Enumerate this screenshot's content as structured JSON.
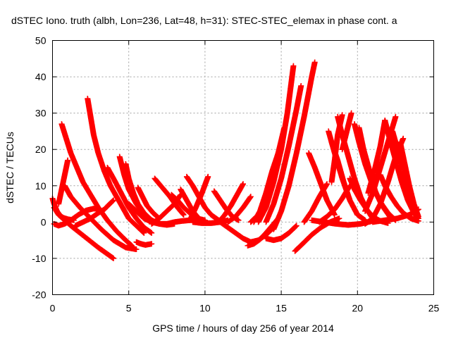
{
  "chart_data": {
    "type": "scatter",
    "title": "dSTEC Iono. truth (albh, Lon=236, Lat=48, h=31): STEC-STEC_elemax in phase cont. a",
    "xlabel": "GPS time / hours of day 256 of year 2014",
    "ylabel": "dSTEC  / TECUs",
    "xlim": [
      0,
      25
    ],
    "ylim": [
      -20,
      50
    ],
    "xticks": [
      "0",
      "5",
      "10",
      "15",
      "20",
      "25"
    ],
    "yticks": [
      "-20",
      "-10",
      "0",
      "10",
      "20",
      "30",
      "40",
      "50"
    ],
    "grid": true,
    "marker": "plus",
    "color": "#ff0000",
    "series": [
      {
        "x": [
          0.0,
          0.1,
          0.3,
          0.5,
          0.7,
          1.0,
          1.4
        ],
        "y": [
          6.5,
          5.0,
          3.0,
          1.8,
          1.2,
          0.8,
          0.5
        ]
      },
      {
        "x": [
          0.1,
          0.4,
          0.8,
          1.2,
          1.8,
          2.4,
          3.0,
          3.5,
          4.0
        ],
        "y": [
          4.0,
          2.0,
          0.5,
          -1.0,
          -3.0,
          -5.0,
          -7.0,
          -8.5,
          -10.0
        ]
      },
      {
        "x": [
          0.1,
          0.4,
          0.8,
          1.2,
          1.7,
          2.2,
          2.7,
          3.1
        ],
        "y": [
          -0.5,
          -1.0,
          -0.5,
          0.5,
          2.0,
          3.2,
          3.7,
          3.6
        ]
      },
      {
        "x": [
          0.4,
          0.6,
          0.8,
          1.0
        ],
        "y": [
          5.0,
          9.0,
          13.0,
          17.0
        ]
      },
      {
        "x": [
          0.6,
          0.9,
          1.2,
          1.6,
          2.0,
          2.5,
          3.0,
          3.6,
          4.2,
          4.8,
          5.2
        ],
        "y": [
          27.0,
          23.0,
          19.0,
          15.0,
          11.0,
          7.5,
          4.0,
          0.5,
          -2.5,
          -5.0,
          -6.5
        ]
      },
      {
        "x": [
          0.8,
          1.2,
          1.8,
          2.5,
          3.2,
          4.0,
          4.8,
          5.5
        ],
        "y": [
          10.0,
          7.0,
          4.0,
          1.0,
          -2.0,
          -5.0,
          -7.0,
          -7.5
        ]
      },
      {
        "x": [
          2.3,
          2.5,
          2.7,
          3.0,
          3.4,
          3.8,
          4.2,
          4.6,
          5.0,
          5.5,
          6.0
        ],
        "y": [
          34.0,
          29.0,
          24.0,
          19.0,
          14.0,
          10.0,
          7.0,
          4.0,
          1.0,
          -1.0,
          -3.0
        ]
      },
      {
        "x": [
          1.5,
          2.0,
          2.5,
          3.0,
          3.4,
          3.7,
          4.0
        ],
        "y": [
          -1.0,
          0.0,
          1.0,
          2.5,
          3.5,
          4.8,
          6.0
        ]
      },
      {
        "x": [
          3.6,
          4.0,
          4.5,
          5.0,
          5.5,
          6.0,
          6.5
        ],
        "y": [
          15.0,
          12.0,
          8.0,
          4.0,
          1.0,
          -1.5,
          -3.0
        ]
      },
      {
        "x": [
          4.4,
          4.7,
          5.0,
          5.5,
          6.0,
          6.5,
          7.0,
          7.5,
          8.0
        ],
        "y": [
          18.0,
          13.0,
          9.0,
          5.0,
          2.0,
          0.5,
          -0.5,
          -0.8,
          -0.5
        ]
      },
      {
        "x": [
          4.8,
          5.0,
          5.3,
          5.6,
          6.0,
          6.5,
          7.0
        ],
        "y": [
          16.0,
          12.0,
          8.0,
          5.0,
          2.5,
          0.5,
          -0.5
        ]
      },
      {
        "x": [
          5.6,
          5.9,
          6.2,
          6.6,
          7.0
        ],
        "y": [
          9.5,
          7.0,
          4.5,
          2.5,
          1.0
        ]
      },
      {
        "x": [
          5.5,
          5.8,
          6.1,
          6.5
        ],
        "y": [
          -5.5,
          -6.0,
          -6.3,
          -6.0
        ]
      },
      {
        "x": [
          5.0,
          5.5,
          6.0,
          6.5,
          7.0,
          7.5,
          8.0,
          8.5,
          9.0,
          9.5,
          10.0
        ],
        "y": [
          5.0,
          3.0,
          1.0,
          0.0,
          -0.5,
          -0.5,
          0.0,
          0.3,
          0.5,
          0.5,
          0.3
        ]
      },
      {
        "x": [
          6.5,
          7.0,
          7.5,
          8.0,
          8.4
        ],
        "y": [
          -0.5,
          1.0,
          3.0,
          5.0,
          7.5
        ]
      },
      {
        "x": [
          6.7,
          7.2,
          7.7,
          8.2,
          8.6
        ],
        "y": [
          12.0,
          9.5,
          7.0,
          4.0,
          2.0
        ]
      },
      {
        "x": [
          7.8,
          8.2,
          8.6,
          9.0,
          9.5,
          10.0
        ],
        "y": [
          7.5,
          6.0,
          4.0,
          2.5,
          1.0,
          0.5
        ]
      },
      {
        "x": [
          8.4,
          8.8,
          9.2,
          9.6
        ],
        "y": [
          9.0,
          6.0,
          3.0,
          1.0
        ]
      },
      {
        "x": [
          8.8,
          9.2,
          9.6,
          10.0,
          10.4,
          10.9
        ],
        "y": [
          12.5,
          10.0,
          7.0,
          4.0,
          2.0,
          0.5
        ]
      },
      {
        "x": [
          9.0,
          9.4,
          9.8,
          10.2
        ],
        "y": [
          0.5,
          4.0,
          8.0,
          12.5
        ]
      },
      {
        "x": [
          9.2,
          9.8,
          10.4,
          11.0,
          11.5
        ],
        "y": [
          0.0,
          -0.3,
          -0.3,
          0.0,
          0.5
        ]
      },
      {
        "x": [
          10.6,
          11.0,
          11.4,
          11.8,
          12.2
        ],
        "y": [
          8.5,
          6.0,
          3.5,
          1.5,
          0.5
        ]
      },
      {
        "x": [
          10.9,
          11.3,
          11.7,
          12.1,
          12.5
        ],
        "y": [
          0.0,
          2.0,
          4.5,
          7.5,
          10.5
        ]
      },
      {
        "x": [
          11.5,
          12.0,
          12.5,
          13.0
        ],
        "y": [
          0.0,
          1.5,
          4.0,
          7.0
        ]
      },
      {
        "x": [
          11.0,
          11.5,
          12.0,
          12.5,
          13.0,
          13.5,
          14.0,
          14.5
        ],
        "y": [
          0.0,
          -1.5,
          -3.0,
          -4.5,
          -5.5,
          -5.0,
          -3.5,
          -1.5
        ]
      },
      {
        "x": [
          12.8,
          13.2,
          13.6,
          14.0,
          14.4,
          14.8
        ],
        "y": [
          -6.5,
          -6.0,
          -4.8,
          -3.0,
          -1.0,
          1.0
        ]
      },
      {
        "x": [
          13.0,
          13.5,
          14.0,
          14.4,
          14.8,
          15.2
        ],
        "y": [
          0.0,
          2.0,
          6.0,
          12.0,
          19.0,
          26.0
        ]
      },
      {
        "x": [
          13.2,
          13.6,
          14.0,
          14.4,
          14.8
        ],
        "y": [
          0.0,
          3.0,
          8.0,
          14.0,
          19.0
        ]
      },
      {
        "x": [
          13.5,
          14.0,
          14.5,
          15.0,
          15.4,
          15.8
        ],
        "y": [
          0.0,
          4.0,
          11.0,
          20.0,
          30.0,
          43.0
        ]
      },
      {
        "x": [
          14.0,
          14.5,
          15.0,
          15.5,
          16.0,
          16.3
        ],
        "y": [
          0.0,
          5.0,
          12.0,
          21.0,
          31.0,
          37.5
        ]
      },
      {
        "x": [
          14.5,
          15.0,
          15.5,
          16.0,
          16.5,
          17.0,
          17.2
        ],
        "y": [
          -2.0,
          3.0,
          10.0,
          19.0,
          29.0,
          40.0,
          44.0
        ]
      },
      {
        "x": [
          14.0,
          14.5,
          15.0,
          15.5,
          16.0
        ],
        "y": [
          -4.5,
          -5.0,
          -4.5,
          -3.0,
          -1.0
        ]
      },
      {
        "x": [
          15.9,
          16.4,
          17.0,
          17.6,
          18.2,
          18.8
        ],
        "y": [
          -8.0,
          -6.0,
          -3.5,
          -1.5,
          0.0,
          1.0
        ]
      },
      {
        "x": [
          16.5,
          17.0,
          17.5,
          18.0
        ],
        "y": [
          0.0,
          3.0,
          7.0,
          10.5
        ]
      },
      {
        "x": [
          16.8,
          17.2,
          17.6,
          18.0,
          18.5
        ],
        "y": [
          19.0,
          15.0,
          10.5,
          6.0,
          2.0
        ]
      },
      {
        "x": [
          17.5,
          18.0,
          18.5,
          19.0,
          19.5
        ],
        "y": [
          0.0,
          1.5,
          3.5,
          6.5,
          10.0
        ]
      },
      {
        "x": [
          17.0,
          17.8,
          18.6,
          19.4,
          20.2,
          21.0
        ],
        "y": [
          0.5,
          0.0,
          -0.5,
          -0.8,
          -0.5,
          0.3
        ]
      },
      {
        "x": [
          18.1,
          18.5,
          19.0,
          19.5,
          20.0
        ],
        "y": [
          25.0,
          19.0,
          12.0,
          6.0,
          2.0
        ]
      },
      {
        "x": [
          18.3,
          18.7,
          19.1,
          19.5,
          20.0,
          20.5
        ],
        "y": [
          22.0,
          17.0,
          11.0,
          6.0,
          2.0,
          0.5
        ]
      },
      {
        "x": [
          18.3,
          18.5,
          18.7,
          19.0
        ],
        "y": [
          11.0,
          17.0,
          24.0,
          29.5
        ]
      },
      {
        "x": [
          18.7,
          19.0,
          19.4,
          19.8,
          20.2,
          20.6,
          21.0
        ],
        "y": [
          29.0,
          24.0,
          18.0,
          12.0,
          7.0,
          3.5,
          1.0
        ]
      },
      {
        "x": [
          19.0,
          19.3,
          19.6
        ],
        "y": [
          20.0,
          25.0,
          30.0
        ]
      },
      {
        "x": [
          19.5,
          19.8,
          20.2,
          20.6,
          21.0,
          21.5,
          22.0
        ],
        "y": [
          12.0,
          9.0,
          6.0,
          3.5,
          1.5,
          0.3,
          -0.3
        ]
      },
      {
        "x": [
          19.8,
          20.1,
          20.5,
          21.0,
          21.5,
          22.0,
          22.5
        ],
        "y": [
          27.0,
          22.0,
          16.0,
          10.0,
          5.5,
          2.5,
          0.5
        ]
      },
      {
        "x": [
          20.1,
          20.4,
          20.8,
          21.2,
          21.7,
          22.2
        ],
        "y": [
          26.0,
          20.0,
          14.0,
          8.0,
          4.0,
          1.0
        ]
      },
      {
        "x": [
          20.5,
          21.0,
          21.5,
          22.0,
          22.5,
          23.0
        ],
        "y": [
          -0.5,
          1.0,
          5.0,
          11.0,
          18.0,
          23.0
        ]
      },
      {
        "x": [
          20.5,
          21.0,
          21.5,
          22.0,
          22.5
        ],
        "y": [
          3.0,
          8.0,
          15.0,
          22.0,
          29.0
        ]
      },
      {
        "x": [
          20.7,
          21.1,
          21.5,
          21.8
        ],
        "y": [
          8.0,
          14.0,
          21.0,
          28.0
        ]
      },
      {
        "x": [
          21.8,
          22.1,
          22.5,
          22.9,
          23.3,
          23.7,
          24.0
        ],
        "y": [
          28.0,
          23.0,
          17.0,
          11.0,
          6.0,
          2.5,
          1.0
        ]
      },
      {
        "x": [
          21.5,
          21.8,
          22.2,
          22.6,
          23.0,
          23.5,
          24.0
        ],
        "y": [
          13.0,
          10.0,
          7.0,
          4.5,
          2.5,
          1.0,
          0.3
        ]
      },
      {
        "x": [
          22.3,
          22.7,
          23.1,
          23.6
        ],
        "y": [
          25.0,
          19.0,
          13.0,
          6.0
        ]
      },
      {
        "x": [
          22.8,
          23.1,
          23.4,
          23.7,
          24.0
        ],
        "y": [
          22.0,
          16.0,
          10.0,
          5.0,
          1.5
        ]
      },
      {
        "x": [
          21.0,
          21.8,
          22.6,
          23.4,
          24.0
        ],
        "y": [
          0.0,
          0.5,
          1.0,
          2.0,
          3.5
        ]
      },
      {
        "x": [
          23.0,
          23.3,
          23.6,
          23.9
        ],
        "y": [
          12.0,
          8.0,
          4.0,
          1.0
        ]
      }
    ]
  }
}
